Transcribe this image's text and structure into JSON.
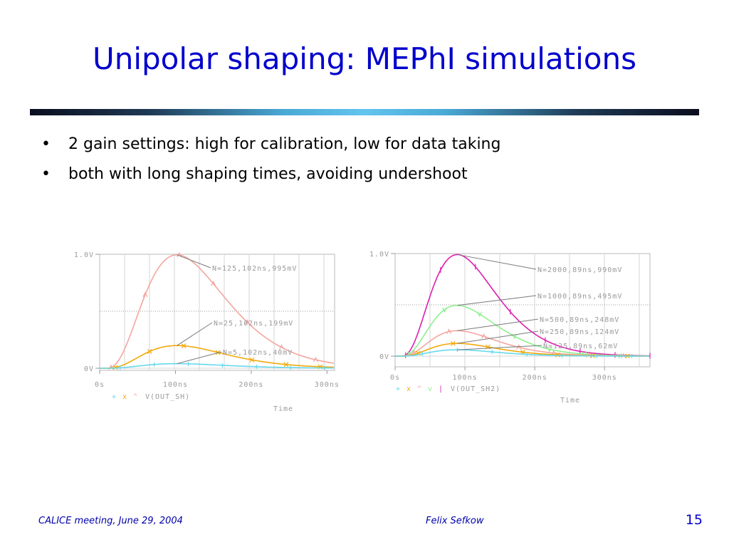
{
  "slide": {
    "title": "Unipolar shaping: MEPhI simulations",
    "bullets": [
      "2 gain settings: high for calibration, low for data taking",
      "both with long shaping times, avoiding undershoot"
    ],
    "footer_left": "CALICE meeting, June 29, 2004",
    "footer_center": "Felix Sefkow",
    "page_number": "15"
  },
  "chart_data": [
    {
      "type": "line",
      "xlabel": "Time",
      "x_ticks": [
        "0s",
        "100ns",
        "200ns",
        "300ns"
      ],
      "y_ticks": [
        "0V",
        "1.0V"
      ],
      "xlim": [
        0,
        310
      ],
      "ylim": [
        -0.03,
        1.03
      ],
      "legend_markers": [
        "+",
        "x",
        "^"
      ],
      "legend_label": "V(OUT_SH)",
      "peak_time_ns": 102,
      "series": [
        {
          "amplitude": 0.995,
          "color": "#f4a6a0",
          "marker": "^",
          "annotation": "N=125,102ns,995mV"
        },
        {
          "amplitude": 0.199,
          "color": "#f2a90a",
          "marker": "x",
          "annotation": "N=25,102ns,199mV"
        },
        {
          "amplitude": 0.04,
          "color": "#66d8ec",
          "marker": "+",
          "annotation": "N=5,102ns,40mV"
        }
      ]
    },
    {
      "type": "line",
      "xlabel": "Time",
      "x_ticks": [
        "0s",
        "100ns",
        "200ns",
        "300ns"
      ],
      "y_ticks": [
        "0V",
        "1.0V"
      ],
      "xlim": [
        0,
        365
      ],
      "ylim": [
        0,
        1.0
      ],
      "legend_markers": [
        "+",
        "x",
        "^",
        "v",
        "|"
      ],
      "legend_label": "V(OUT_SH2)",
      "peak_time_ns": 89,
      "series": [
        {
          "amplitude": 0.99,
          "color": "#dd1fb0",
          "marker": "|",
          "annotation": "N=2000,89ns,990mV"
        },
        {
          "amplitude": 0.495,
          "color": "#8ef08e",
          "marker": "v",
          "annotation": "N=1000,89ns,495mV"
        },
        {
          "amplitude": 0.248,
          "color": "#f4a6a0",
          "marker": "^",
          "annotation": "N=500,89ns,248mV"
        },
        {
          "amplitude": 0.124,
          "color": "#f2a90a",
          "marker": "x",
          "annotation": "N=250,89ns,124mV"
        },
        {
          "amplitude": 0.062,
          "color": "#66d8ec",
          "marker": "+",
          "annotation": "N=125,89ns,62mV"
        }
      ]
    }
  ]
}
